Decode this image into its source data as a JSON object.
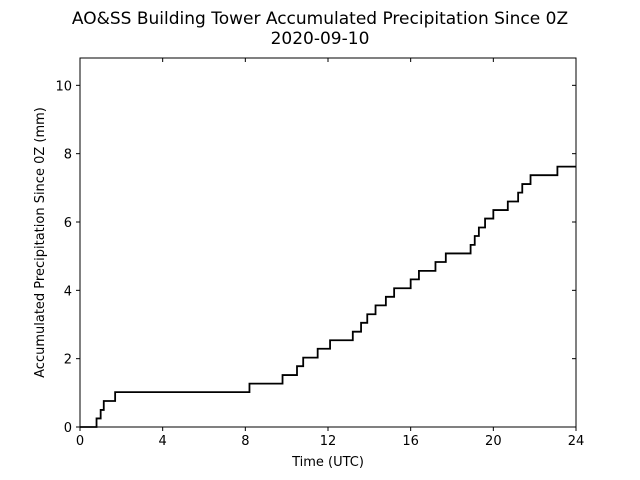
{
  "chart_data": {
    "type": "line",
    "step": "post",
    "title": "AO&SS Building Tower Accumulated Precipitation Since 0Z",
    "subtitle": "2020-09-10",
    "xlabel": "Time (UTC)",
    "ylabel": "Accumulated Precipitation Since 0Z (mm)",
    "xlim": [
      0,
      24
    ],
    "ylim": [
      0,
      10.8
    ],
    "xticks": [
      0,
      4,
      8,
      12,
      16,
      20,
      24
    ],
    "yticks": [
      0,
      2,
      4,
      6,
      8,
      10
    ],
    "grid": false,
    "x": [
      0,
      0.8,
      1.0,
      1.15,
      1.7,
      8.2,
      9.8,
      10.5,
      10.8,
      11.5,
      12.1,
      13.2,
      13.6,
      13.9,
      14.3,
      14.8,
      15.2,
      15.5,
      16.0,
      16.4,
      17.2,
      17.7,
      18.9,
      19.1,
      19.3,
      19.6,
      20.0,
      20.7,
      21.2,
      21.4,
      21.8,
      23.1,
      24.0
    ],
    "y": [
      0,
      0.25,
      0.5,
      0.76,
      1.02,
      1.27,
      1.52,
      1.78,
      2.03,
      2.29,
      2.54,
      2.79,
      3.05,
      3.3,
      3.56,
      3.81,
      4.06,
      4.06,
      4.32,
      4.57,
      4.83,
      5.08,
      5.33,
      5.59,
      5.84,
      6.1,
      6.35,
      6.6,
      6.86,
      7.11,
      7.37,
      7.62,
      7.62
    ],
    "series": [
      {
        "color": "#000000"
      }
    ]
  }
}
